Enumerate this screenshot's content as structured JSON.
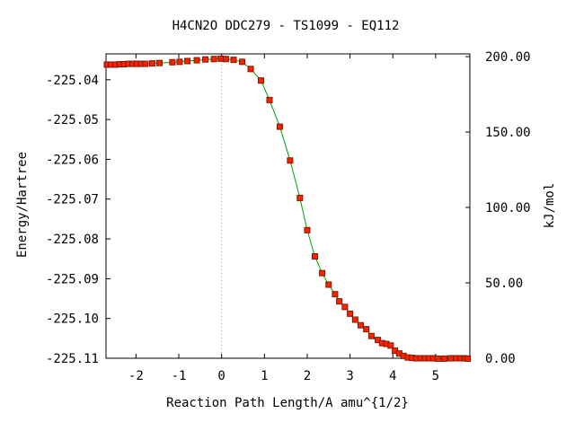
{
  "chart_data": {
    "type": "line",
    "title": "H4CN2O   DDC279 - TS1099 - EQ112",
    "xlabel": "Reaction Path Length/A amu^{1/2}",
    "ylabel": "Energy/Hartree",
    "y2label": "kJ/mol",
    "xlim": [
      -2.7,
      5.8
    ],
    "ylim": [
      -225.11,
      -225.0335
    ],
    "y2lim": [
      0,
      201.8
    ],
    "x_ticks": [
      -2,
      -1,
      0,
      1,
      2,
      3,
      4,
      5
    ],
    "y_ticks": [
      -225.04,
      -225.05,
      -225.06,
      -225.07,
      -225.08,
      -225.09,
      -225.1,
      -225.11
    ],
    "y_tick_labels": [
      "-225.04",
      "-225.05",
      "-225.06",
      "-225.07",
      "-225.08",
      "-225.09",
      "-225.10",
      "-225.11"
    ],
    "y2_ticks": [
      200,
      150,
      100,
      50,
      0
    ],
    "y2_tick_labels": [
      "200.00",
      "150.00",
      "100.00",
      "50.00",
      "0.00"
    ],
    "ts_marker_x": 0.0,
    "grid": false,
    "series": [
      {
        "color": "#00a000",
        "marker_color": "#ff2000",
        "marker_edge": "#7a1a00",
        "x": [
          -2.68,
          -2.58,
          -2.48,
          -2.38,
          -2.28,
          -2.18,
          -2.08,
          -1.98,
          -1.88,
          -1.78,
          -1.62,
          -1.45,
          -1.15,
          -0.98,
          -0.8,
          -0.58,
          -0.38,
          -0.18,
          -0.02,
          0.1,
          0.28,
          0.48,
          0.68,
          0.92,
          1.12,
          1.36,
          1.6,
          1.83,
          2.0,
          2.18,
          2.35,
          2.5,
          2.65,
          2.75,
          2.88,
          3.0,
          3.12,
          3.25,
          3.38,
          3.5,
          3.65,
          3.75,
          3.85,
          3.95,
          4.05,
          4.15,
          4.25,
          4.35,
          4.45,
          4.55,
          4.65,
          4.75,
          4.85,
          4.95,
          5.05,
          5.2,
          5.35,
          5.48,
          5.58,
          5.68,
          5.75
        ],
        "y": [
          -225.0362,
          -225.0362,
          -225.0362,
          -225.0361,
          -225.0361,
          -225.036,
          -225.036,
          -225.036,
          -225.036,
          -225.036,
          -225.0359,
          -225.0358,
          -225.0356,
          -225.0355,
          -225.0353,
          -225.0351,
          -225.0349,
          -225.0348,
          -225.0347,
          -225.0348,
          -225.035,
          -225.0355,
          -225.0373,
          -225.0402,
          -225.0451,
          -225.0518,
          -225.0603,
          -225.0697,
          -225.0778,
          -225.0844,
          -225.0886,
          -225.0915,
          -225.0939,
          -225.0957,
          -225.0971,
          -225.0988,
          -225.1003,
          -225.1017,
          -225.1027,
          -225.1044,
          -225.1054,
          -225.1062,
          -225.1064,
          -225.1068,
          -225.1081,
          -225.1088,
          -225.1094,
          -225.1098,
          -225.1099,
          -225.11,
          -225.11,
          -225.11,
          -225.11,
          -225.11,
          -225.1101,
          -225.1101,
          -225.11,
          -225.11,
          -225.11,
          -225.11,
          -225.1101
        ]
      }
    ]
  }
}
